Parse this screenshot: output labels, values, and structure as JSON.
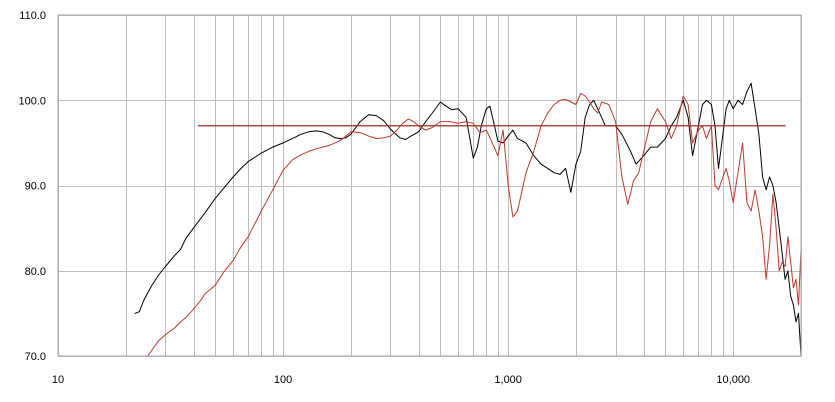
{
  "chart_data": {
    "type": "line",
    "title": "",
    "xlabel": "",
    "ylabel": "",
    "x_scale": "log",
    "xlim": [
      10,
      20000
    ],
    "ylim": [
      70,
      110
    ],
    "grid": true,
    "legend": "none",
    "x_ticks": [
      {
        "value": 10,
        "label": "10"
      },
      {
        "value": 100,
        "label": "100"
      },
      {
        "value": 1000,
        "label": "1,000"
      },
      {
        "value": 10000,
        "label": "10,000"
      }
    ],
    "y_ticks": [
      {
        "value": 70,
        "label": "70.0"
      },
      {
        "value": 80,
        "label": "80.0"
      },
      {
        "value": 90,
        "label": "90.0"
      },
      {
        "value": 100,
        "label": "100.0"
      },
      {
        "value": 110,
        "label": "110.0"
      }
    ],
    "series": [
      {
        "color": "#000000",
        "points": [
          [
            22,
            75.0
          ],
          [
            23,
            75.2
          ],
          [
            24,
            76.5
          ],
          [
            26,
            78.2
          ],
          [
            28,
            79.5
          ],
          [
            30,
            80.5
          ],
          [
            33,
            81.8
          ],
          [
            35,
            82.5
          ],
          [
            37,
            83.8
          ],
          [
            40,
            85.0
          ],
          [
            45,
            86.8
          ],
          [
            50,
            88.5
          ],
          [
            55,
            89.8
          ],
          [
            60,
            91.0
          ],
          [
            65,
            92.0
          ],
          [
            70,
            92.8
          ],
          [
            80,
            93.8
          ],
          [
            90,
            94.5
          ],
          [
            100,
            95.0
          ],
          [
            110,
            95.5
          ],
          [
            120,
            96.0
          ],
          [
            130,
            96.3
          ],
          [
            140,
            96.4
          ],
          [
            150,
            96.3
          ],
          [
            160,
            96.0
          ],
          [
            170,
            95.6
          ],
          [
            180,
            95.5
          ],
          [
            190,
            95.6
          ],
          [
            200,
            96.0
          ],
          [
            220,
            97.5
          ],
          [
            240,
            98.3
          ],
          [
            260,
            98.2
          ],
          [
            280,
            97.6
          ],
          [
            300,
            96.6
          ],
          [
            330,
            95.6
          ],
          [
            350,
            95.4
          ],
          [
            370,
            95.8
          ],
          [
            400,
            96.3
          ],
          [
            430,
            97.5
          ],
          [
            460,
            98.5
          ],
          [
            500,
            99.8
          ],
          [
            530,
            99.3
          ],
          [
            560,
            98.9
          ],
          [
            600,
            99.0
          ],
          [
            650,
            98.0
          ],
          [
            700,
            93.2
          ],
          [
            730,
            94.5
          ],
          [
            760,
            97.0
          ],
          [
            800,
            99.0
          ],
          [
            830,
            99.3
          ],
          [
            870,
            97.0
          ],
          [
            900,
            95.2
          ],
          [
            950,
            95.0
          ],
          [
            1000,
            95.8
          ],
          [
            1050,
            96.5
          ],
          [
            1100,
            95.5
          ],
          [
            1200,
            95.0
          ],
          [
            1300,
            93.5
          ],
          [
            1400,
            92.5
          ],
          [
            1500,
            92.0
          ],
          [
            1600,
            91.5
          ],
          [
            1700,
            91.3
          ],
          [
            1800,
            92.0
          ],
          [
            1900,
            89.2
          ],
          [
            2000,
            92.5
          ],
          [
            2100,
            94.0
          ],
          [
            2200,
            98.0
          ],
          [
            2300,
            99.5
          ],
          [
            2400,
            100.0
          ],
          [
            2500,
            99.0
          ],
          [
            2600,
            98.0
          ],
          [
            2700,
            97.0
          ],
          [
            2800,
            97.0
          ],
          [
            3000,
            97.0
          ],
          [
            3200,
            96.0
          ],
          [
            3500,
            94.0
          ],
          [
            3700,
            92.5
          ],
          [
            4000,
            93.5
          ],
          [
            4300,
            94.5
          ],
          [
            4600,
            94.5
          ],
          [
            5000,
            95.5
          ],
          [
            5300,
            97.0
          ],
          [
            5600,
            98.0
          ],
          [
            6000,
            100.0
          ],
          [
            6300,
            98.0
          ],
          [
            6600,
            93.5
          ],
          [
            7000,
            97.0
          ],
          [
            7300,
            99.5
          ],
          [
            7600,
            100.0
          ],
          [
            8000,
            99.5
          ],
          [
            8300,
            97.0
          ],
          [
            8600,
            92.0
          ],
          [
            9000,
            96.0
          ],
          [
            9300,
            99.0
          ],
          [
            9600,
            100.0
          ],
          [
            10000,
            99.0
          ],
          [
            10500,
            100.0
          ],
          [
            11000,
            99.5
          ],
          [
            11500,
            101.0
          ],
          [
            12000,
            102.0
          ],
          [
            12500,
            99.0
          ],
          [
            13000,
            96.0
          ],
          [
            13500,
            91.0
          ],
          [
            14000,
            89.5
          ],
          [
            14500,
            91.0
          ],
          [
            15000,
            90.0
          ],
          [
            15500,
            88.0
          ],
          [
            16000,
            85.0
          ],
          [
            16500,
            82.0
          ],
          [
            17000,
            79.0
          ],
          [
            17500,
            80.0
          ],
          [
            18000,
            77.0
          ],
          [
            18500,
            76.0
          ],
          [
            19000,
            74.0
          ],
          [
            19500,
            75.0
          ],
          [
            20000,
            70.0
          ]
        ]
      },
      {
        "color": "#c0392b",
        "points": [
          [
            25,
            70.0
          ],
          [
            28,
            71.8
          ],
          [
            30,
            72.5
          ],
          [
            33,
            73.3
          ],
          [
            35,
            74.0
          ],
          [
            37,
            74.5
          ],
          [
            40,
            75.5
          ],
          [
            43,
            76.5
          ],
          [
            45,
            77.3
          ],
          [
            50,
            78.3
          ],
          [
            55,
            80.0
          ],
          [
            60,
            81.2
          ],
          [
            65,
            82.8
          ],
          [
            70,
            84.0
          ],
          [
            80,
            87.0
          ],
          [
            90,
            89.5
          ],
          [
            100,
            91.8
          ],
          [
            110,
            93.0
          ],
          [
            120,
            93.6
          ],
          [
            130,
            94.0
          ],
          [
            140,
            94.3
          ],
          [
            150,
            94.5
          ],
          [
            160,
            94.7
          ],
          [
            170,
            95.0
          ],
          [
            180,
            95.3
          ],
          [
            190,
            95.8
          ],
          [
            200,
            96.3
          ],
          [
            220,
            96.2
          ],
          [
            240,
            95.8
          ],
          [
            260,
            95.5
          ],
          [
            280,
            95.6
          ],
          [
            300,
            95.8
          ],
          [
            320,
            96.5
          ],
          [
            340,
            97.3
          ],
          [
            360,
            97.8
          ],
          [
            380,
            97.5
          ],
          [
            400,
            97.0
          ],
          [
            430,
            96.5
          ],
          [
            460,
            96.8
          ],
          [
            500,
            97.5
          ],
          [
            550,
            97.5
          ],
          [
            600,
            97.3
          ],
          [
            650,
            97.5
          ],
          [
            700,
            97.3
          ],
          [
            750,
            96.2
          ],
          [
            800,
            96.5
          ],
          [
            850,
            95.0
          ],
          [
            900,
            93.5
          ],
          [
            950,
            96.5
          ],
          [
            1000,
            90.0
          ],
          [
            1050,
            86.3
          ],
          [
            1100,
            87.0
          ],
          [
            1200,
            91.5
          ],
          [
            1300,
            94.0
          ],
          [
            1400,
            97.0
          ],
          [
            1500,
            98.5
          ],
          [
            1600,
            99.5
          ],
          [
            1700,
            100.0
          ],
          [
            1800,
            100.1
          ],
          [
            1900,
            99.8
          ],
          [
            2000,
            99.5
          ],
          [
            2100,
            100.8
          ],
          [
            2200,
            100.5
          ],
          [
            2300,
            99.8
          ],
          [
            2400,
            99.0
          ],
          [
            2500,
            98.5
          ],
          [
            2600,
            99.8
          ],
          [
            2800,
            99.5
          ],
          [
            3000,
            97.5
          ],
          [
            3200,
            91.0
          ],
          [
            3400,
            87.8
          ],
          [
            3600,
            90.5
          ],
          [
            3800,
            91.5
          ],
          [
            4000,
            94.0
          ],
          [
            4300,
            97.5
          ],
          [
            4600,
            99.0
          ],
          [
            5000,
            97.5
          ],
          [
            5300,
            95.5
          ],
          [
            5600,
            97.0
          ],
          [
            6000,
            100.5
          ],
          [
            6300,
            99.5
          ],
          [
            6600,
            95.0
          ],
          [
            7000,
            96.5
          ],
          [
            7300,
            97.0
          ],
          [
            7600,
            95.5
          ],
          [
            8000,
            97.0
          ],
          [
            8300,
            90.0
          ],
          [
            8600,
            89.5
          ],
          [
            9000,
            91.0
          ],
          [
            9300,
            92.0
          ],
          [
            9600,
            90.5
          ],
          [
            10000,
            88.0
          ],
          [
            10500,
            91.5
          ],
          [
            11000,
            95.0
          ],
          [
            11500,
            88.0
          ],
          [
            12000,
            87.0
          ],
          [
            12500,
            89.5
          ],
          [
            13000,
            87.0
          ],
          [
            13500,
            84.0
          ],
          [
            14000,
            79.0
          ],
          [
            14500,
            83.0
          ],
          [
            15000,
            89.0
          ],
          [
            15500,
            85.0
          ],
          [
            16000,
            80.0
          ],
          [
            16500,
            81.0
          ],
          [
            17000,
            80.5
          ],
          [
            17500,
            84.0
          ],
          [
            18000,
            81.0
          ],
          [
            18500,
            78.0
          ],
          [
            19000,
            79.0
          ],
          [
            19500,
            76.0
          ],
          [
            20000,
            82.5
          ]
        ]
      },
      {
        "color": "#000000",
        "points": [
          [
            42,
            97.0
          ],
          [
            17000,
            97.0
          ]
        ]
      },
      {
        "color": "#c0392b",
        "points": [
          [
            42,
            97.0
          ],
          [
            17000,
            97.0
          ]
        ]
      }
    ]
  }
}
